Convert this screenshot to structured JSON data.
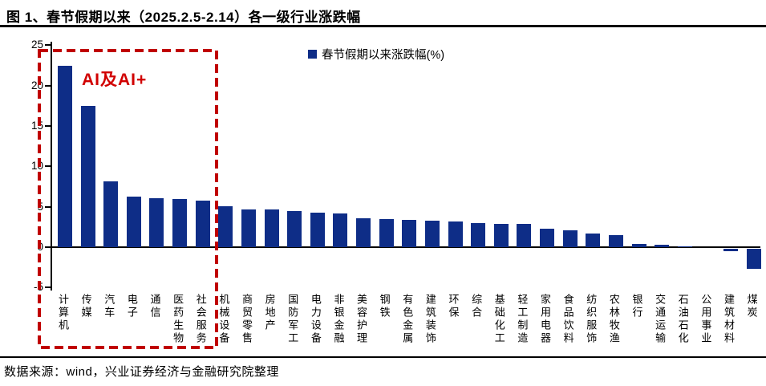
{
  "header": {
    "title": "图 1、春节假期以来（2025.2.5-2.14）各一级行业涨跌幅"
  },
  "chart_data": {
    "type": "bar",
    "title": "图 1、春节假期以来（2025.2.5-2.14）各一级行业涨跌幅",
    "legend": "春节假期以来涨跌幅(%)",
    "categories": [
      "计算机",
      "传媒",
      "汽车",
      "电子",
      "通信",
      "医药生物",
      "社会服务",
      "机械设备",
      "商贸零售",
      "房地产",
      "国防军工",
      "电力设备",
      "非银金融",
      "美容护理",
      "钢铁",
      "有色金属",
      "建筑装饰",
      "环保",
      "综合",
      "基础化工",
      "轻工制造",
      "家用电器",
      "食品饮料",
      "纺织服饰",
      "农林牧渔",
      "银行",
      "交通运输",
      "石油石化",
      "公用事业",
      "建筑材料",
      "煤炭"
    ],
    "values": [
      22.4,
      17.5,
      8.1,
      6.3,
      6.1,
      6.0,
      5.8,
      5.1,
      4.7,
      4.7,
      4.5,
      4.3,
      4.2,
      3.6,
      3.5,
      3.4,
      3.3,
      3.2,
      3.0,
      2.9,
      2.9,
      2.3,
      2.1,
      1.7,
      1.5,
      0.4,
      0.25,
      0.05,
      0.0,
      -0.3,
      -2.5
    ],
    "ylabel": "",
    "xlabel": "",
    "ylim": [
      -5,
      25
    ],
    "yticks": [
      25,
      20,
      15,
      10,
      5,
      0,
      -5
    ],
    "bar_color": "#0E2D87",
    "grid": false,
    "legend_position": "top-center",
    "annotation": {
      "text": "AI及AI+",
      "color": "#D10000",
      "box_color": "#C00000",
      "highlighted_categories": [
        "计算机",
        "传媒",
        "汽车",
        "电子",
        "通信",
        "医药生物",
        "社会服务"
      ]
    }
  },
  "footer": {
    "source": "数据来源：wind，兴业证券经济与金融研究院整理"
  }
}
